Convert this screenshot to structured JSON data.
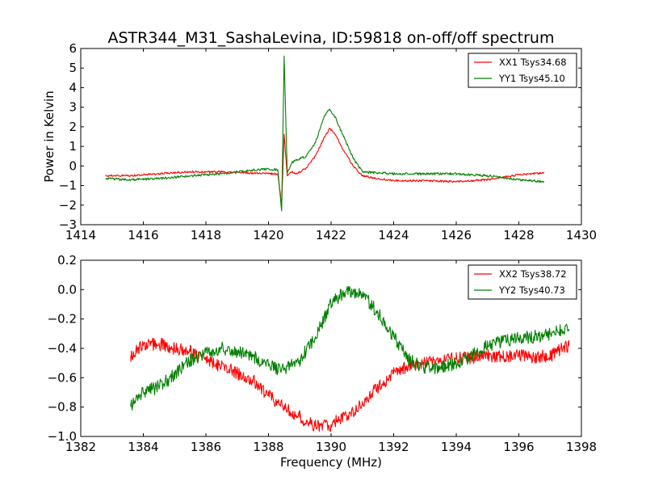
{
  "chart_data": [
    {
      "type": "line",
      "title": "ASTR344_M31_SashaLevina, ID:59818 on-off/off spectrum",
      "xlabel": "",
      "ylabel": "Power in Kelvin",
      "xlim": [
        1414,
        1430
      ],
      "ylim": [
        -3,
        6
      ],
      "x_ticks": [
        "1414",
        "1416",
        "1418",
        "1420",
        "1422",
        "1424",
        "1426",
        "1428",
        "1430"
      ],
      "y_ticks": [
        "−3",
        "−2",
        "−1",
        "0",
        "1",
        "2",
        "3",
        "4",
        "5",
        "6"
      ],
      "grid": false,
      "legend_position": "top-right",
      "series": [
        {
          "name": "XX1 Tsys34.68",
          "color": "#ff0000",
          "x": [
            1414.8,
            1415.5,
            1416.5,
            1417.5,
            1418.5,
            1419.3,
            1420.0,
            1420.3,
            1420.42,
            1420.5,
            1420.6,
            1420.75,
            1420.9,
            1421.2,
            1421.5,
            1421.8,
            1421.95,
            1422.1,
            1422.4,
            1422.7,
            1423.0,
            1423.5,
            1424.0,
            1425.0,
            1426.0,
            1427.0,
            1428.0,
            1428.8
          ],
          "y": [
            -0.5,
            -0.5,
            -0.4,
            -0.3,
            -0.3,
            -0.35,
            -0.4,
            -0.4,
            -2.0,
            1.6,
            -0.5,
            -0.3,
            -0.4,
            -0.1,
            0.5,
            1.5,
            1.9,
            1.7,
            0.8,
            0.0,
            -0.5,
            -0.65,
            -0.75,
            -0.75,
            -0.8,
            -0.7,
            -0.45,
            -0.35
          ]
        },
        {
          "name": "YY1 Tsys45.10",
          "color": "#008000",
          "x": [
            1414.8,
            1415.5,
            1416.5,
            1417.5,
            1418.5,
            1419.3,
            1420.0,
            1420.3,
            1420.42,
            1420.5,
            1420.6,
            1420.75,
            1420.9,
            1421.2,
            1421.5,
            1421.8,
            1421.95,
            1422.1,
            1422.4,
            1422.7,
            1423.0,
            1423.5,
            1424.0,
            1425.0,
            1426.0,
            1427.0,
            1428.0,
            1428.8
          ],
          "y": [
            -0.65,
            -0.7,
            -0.65,
            -0.5,
            -0.4,
            -0.25,
            -0.15,
            -0.2,
            -2.3,
            5.6,
            -0.4,
            0.2,
            0.3,
            0.5,
            1.2,
            2.6,
            2.9,
            2.6,
            1.5,
            0.4,
            -0.3,
            -0.35,
            -0.4,
            -0.4,
            -0.4,
            -0.5,
            -0.7,
            -0.8
          ]
        }
      ]
    },
    {
      "type": "line",
      "title": "",
      "xlabel": "Frequency (MHz)",
      "ylabel": "",
      "xlim": [
        1382,
        1398
      ],
      "ylim": [
        -1.0,
        0.2
      ],
      "x_ticks": [
        "1382",
        "1384",
        "1386",
        "1388",
        "1390",
        "1392",
        "1394",
        "1396",
        "1398"
      ],
      "y_ticks": [
        "−1.0",
        "−0.8",
        "−0.6",
        "−0.4",
        "−0.2",
        "0.0",
        "0.2"
      ],
      "grid": false,
      "legend_position": "top-right",
      "series": [
        {
          "name": "XX2 Tsys38.72",
          "color": "#ff0000",
          "x": [
            1383.6,
            1384.0,
            1384.5,
            1385.0,
            1385.5,
            1386.0,
            1386.5,
            1387.0,
            1387.5,
            1388.0,
            1388.5,
            1389.0,
            1389.5,
            1390.0,
            1390.5,
            1391.0,
            1391.5,
            1392.0,
            1392.5,
            1393.0,
            1393.5,
            1394.0,
            1394.5,
            1395.0,
            1395.5,
            1396.0,
            1396.5,
            1397.0,
            1397.6
          ],
          "y": [
            -0.45,
            -0.38,
            -0.37,
            -0.4,
            -0.42,
            -0.48,
            -0.52,
            -0.57,
            -0.62,
            -0.72,
            -0.8,
            -0.87,
            -0.93,
            -0.92,
            -0.86,
            -0.78,
            -0.66,
            -0.57,
            -0.52,
            -0.49,
            -0.48,
            -0.47,
            -0.46,
            -0.45,
            -0.46,
            -0.45,
            -0.46,
            -0.45,
            -0.38
          ]
        },
        {
          "name": "YY2 Tsys40.73",
          "color": "#008000",
          "x": [
            1383.6,
            1384.0,
            1384.5,
            1385.0,
            1385.5,
            1386.0,
            1386.5,
            1387.0,
            1387.5,
            1388.0,
            1388.5,
            1389.0,
            1389.5,
            1390.0,
            1390.5,
            1391.0,
            1391.5,
            1392.0,
            1392.5,
            1393.0,
            1393.5,
            1394.0,
            1394.5,
            1395.0,
            1395.5,
            1396.0,
            1396.5,
            1397.0,
            1397.6
          ],
          "y": [
            -0.8,
            -0.7,
            -0.66,
            -0.58,
            -0.48,
            -0.43,
            -0.4,
            -0.42,
            -0.45,
            -0.52,
            -0.55,
            -0.48,
            -0.32,
            -0.1,
            0.0,
            -0.03,
            -0.16,
            -0.32,
            -0.48,
            -0.53,
            -0.53,
            -0.5,
            -0.45,
            -0.38,
            -0.35,
            -0.33,
            -0.32,
            -0.3,
            -0.27
          ]
        }
      ]
    }
  ]
}
